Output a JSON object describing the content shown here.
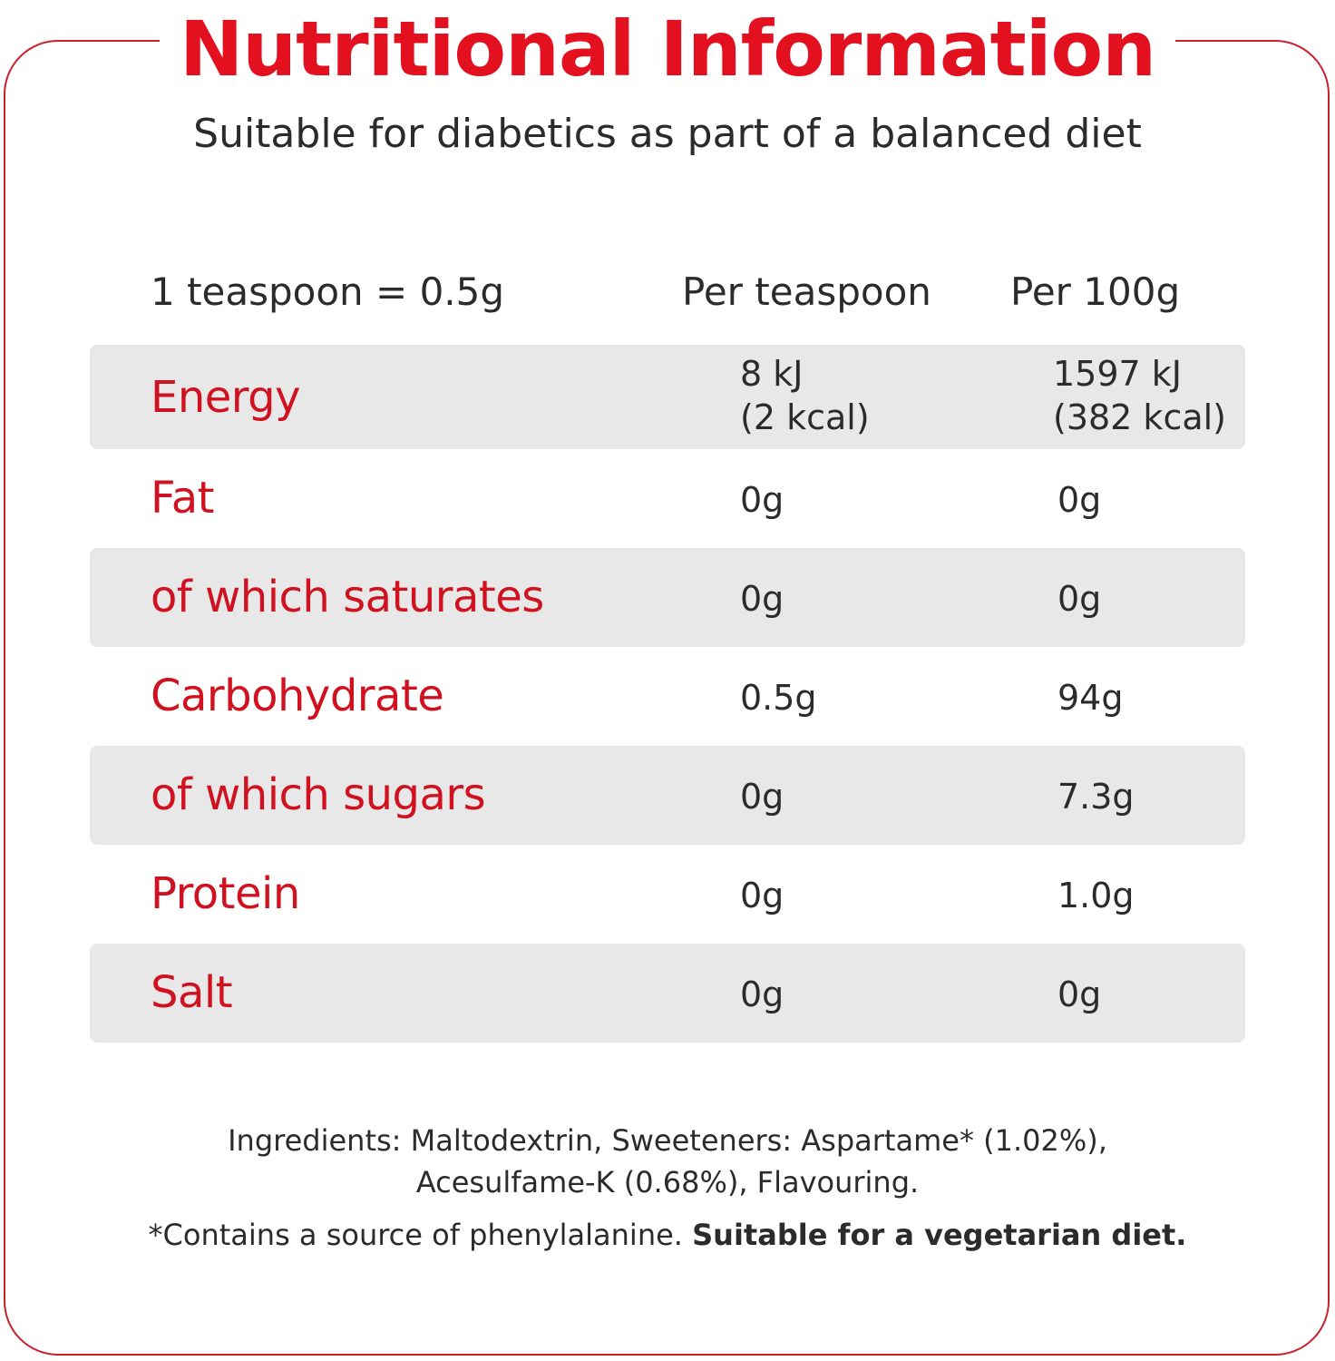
{
  "title": "Nutritional Information",
  "subtitle": "Suitable for diabetics as part of a balanced diet",
  "table_header": {
    "serving": "1 teaspoon = 0.5g",
    "per_teaspoon": "Per teaspoon",
    "per_100g": "Per 100g"
  },
  "rows": [
    {
      "nutrient": "Energy",
      "per_teaspoon": "8 kJ",
      "per_teaspoon_line2": "(2 kcal)",
      "per_100g": "1597 kJ",
      "per_100g_line2": "(382 kcal)"
    },
    {
      "nutrient": "Fat",
      "per_teaspoon": "0g",
      "per_100g": "0g"
    },
    {
      "nutrient": "of which saturates",
      "per_teaspoon": "0g",
      "per_100g": "0g"
    },
    {
      "nutrient": "Carbohydrate",
      "per_teaspoon": "0.5g",
      "per_100g": "94g"
    },
    {
      "nutrient": "of which sugars",
      "per_teaspoon": "0g",
      "per_100g": "7.3g"
    },
    {
      "nutrient": "Protein",
      "per_teaspoon": "0g",
      "per_100g": "1.0g"
    },
    {
      "nutrient": "Salt",
      "per_teaspoon": "0g",
      "per_100g": "0g"
    }
  ],
  "ingredients": {
    "line1": "Ingredients: Maltodextrin, Sweeteners: Aspartame* (1.02%),",
    "line2": "Acesulfame-K (0.68%), Flavouring."
  },
  "footnote": {
    "text": "*Contains a source of phenylalanine. ",
    "bold": "Suitable for a vegetarian diet."
  },
  "colors": {
    "accent_red": "#e3101f",
    "nutrient_red": "#d0111f",
    "row_shade": "#e8e8e8",
    "text": "#2b2b2b"
  }
}
